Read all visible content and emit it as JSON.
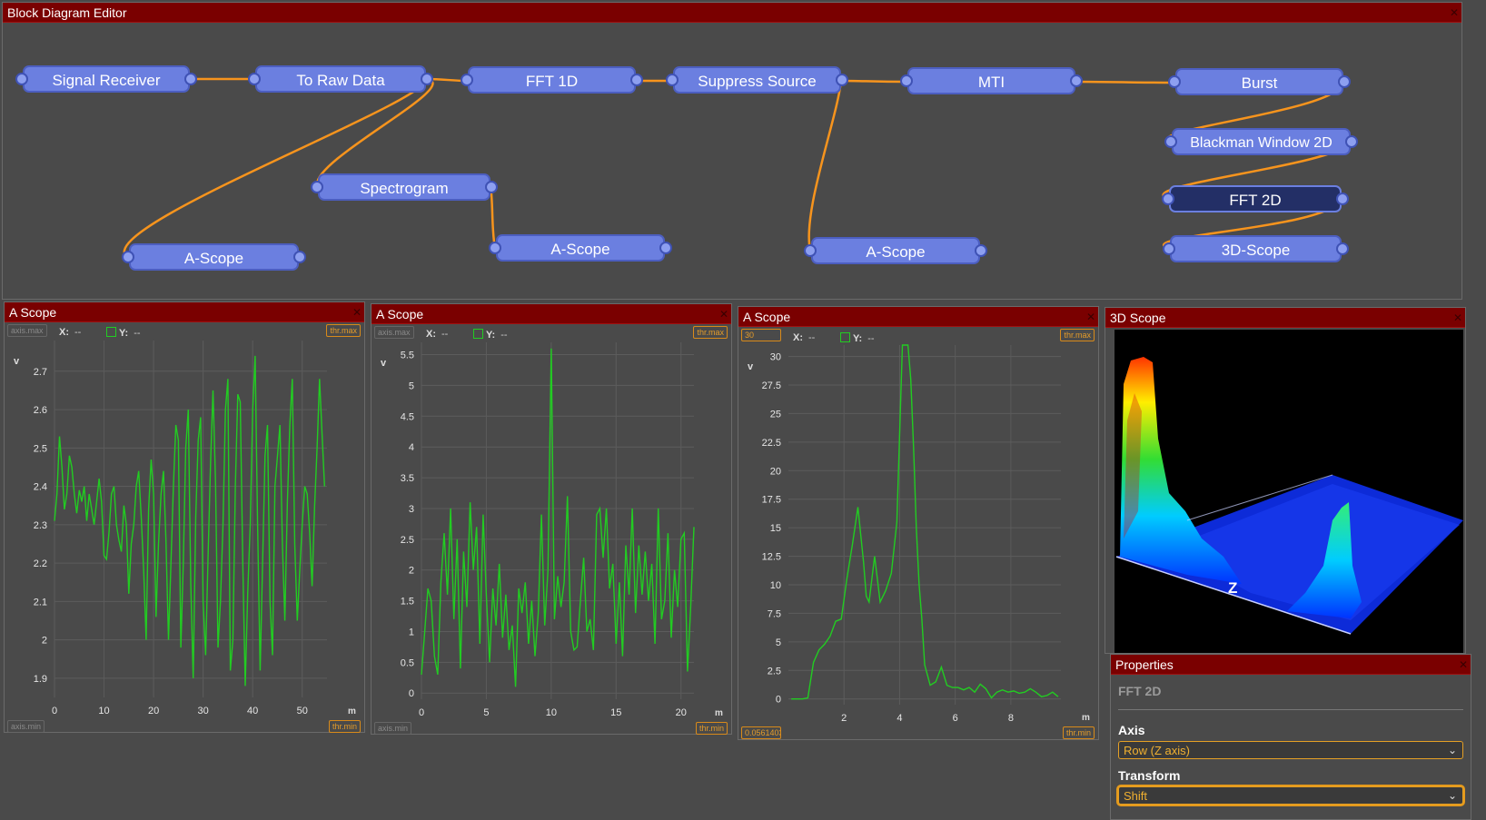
{
  "editor": {
    "title": "Block Diagram Editor",
    "nodes": [
      {
        "id": "signal-receiver",
        "label": "Signal Receiver"
      },
      {
        "id": "to-raw-data",
        "label": "To Raw Data"
      },
      {
        "id": "fft-1d",
        "label": "FFT 1D"
      },
      {
        "id": "suppress-source",
        "label": "Suppress Source"
      },
      {
        "id": "mti",
        "label": "MTI"
      },
      {
        "id": "burst",
        "label": "Burst"
      },
      {
        "id": "spectrogram",
        "label": "Spectrogram"
      },
      {
        "id": "blackman-window-2d",
        "label": "Blackman Window 2D"
      },
      {
        "id": "fft-2d",
        "label": "FFT 2D",
        "selected": true
      },
      {
        "id": "3d-scope",
        "label": "3D-Scope"
      },
      {
        "id": "a-scope-1",
        "label": "A-Scope"
      },
      {
        "id": "a-scope-2",
        "label": "A-Scope"
      },
      {
        "id": "a-scope-3",
        "label": "A-Scope"
      }
    ],
    "wire_color": "#f7941d"
  },
  "scopes": [
    {
      "title": "A Scope",
      "tags": {
        "axis_max": "axis.max",
        "axis_min": "axis.min",
        "thr_max": "thr.max",
        "thr_min": "thr.min"
      },
      "readout": {
        "x_label": "X:",
        "x_value": "--",
        "y_label": "Y:",
        "y_value": "--"
      },
      "ylabel": "v",
      "xlabel": "m"
    },
    {
      "title": "A Scope",
      "tags": {
        "axis_max": "axis.max",
        "axis_min": "axis.min",
        "thr_max": "thr.max",
        "thr_min": "thr.min"
      },
      "readout": {
        "x_label": "X:",
        "x_value": "--",
        "y_label": "Y:",
        "y_value": "--"
      },
      "ylabel": "v",
      "xlabel": "m"
    },
    {
      "title": "A Scope",
      "tags": {
        "axis_max": "30",
        "axis_min": "0.0561403",
        "thr_max": "thr.max",
        "thr_min": "thr.min"
      },
      "readout": {
        "x_label": "X:",
        "x_value": "--",
        "y_label": "Y:",
        "y_value": "--"
      },
      "ylabel": "v",
      "xlabel": "m"
    }
  ],
  "scope3d": {
    "title": "3D Scope",
    "axis_label": "Z"
  },
  "properties": {
    "title": "Properties",
    "node_name": "FFT 2D",
    "axis_label": "Axis",
    "axis_value": "Row (Z axis)",
    "transform_label": "Transform",
    "transform_value": "Shift"
  },
  "chart_data": [
    {
      "type": "line",
      "xlim": [
        0,
        55
      ],
      "ylim": [
        1.85,
        2.78
      ],
      "xticks": [
        0,
        10,
        20,
        30,
        40,
        50
      ],
      "yticks": [
        1.9,
        2,
        2.1,
        2.2,
        2.3,
        2.4,
        2.5,
        2.6,
        2.7
      ],
      "ytick_labels": [
        "1.9",
        "2",
        "2.1",
        "2.2",
        "2.3",
        "2.4",
        "2.5",
        "2.6",
        "2.7"
      ],
      "xlabel": "m",
      "ylabel": "v",
      "grid": true,
      "color": "#22cc22",
      "x": [
        0,
        0.5,
        1,
        1.5,
        2,
        2.5,
        3,
        3.5,
        4,
        4.5,
        5,
        5.5,
        6,
        6.5,
        7,
        7.5,
        8,
        8.5,
        9,
        9.5,
        10,
        10.5,
        11,
        11.5,
        12,
        12.5,
        13,
        13.5,
        14,
        14.5,
        15,
        15.5,
        16,
        16.5,
        17,
        17.5,
        18,
        18.5,
        19,
        19.5,
        20,
        20.5,
        21,
        21.5,
        22,
        22.5,
        23,
        23.5,
        24,
        24.5,
        25,
        25.5,
        26,
        26.5,
        27,
        27.5,
        28,
        28.5,
        29,
        29.5,
        30,
        30.5,
        31,
        31.5,
        32,
        32.5,
        33,
        33.5,
        34,
        34.5,
        35,
        35.5,
        36,
        36.5,
        37,
        37.5,
        38,
        38.5,
        39,
        39.5,
        40,
        40.5,
        41,
        41.5,
        42,
        42.5,
        43,
        43.5,
        44,
        44.5,
        45,
        45.5,
        46,
        46.5,
        47,
        47.5,
        48,
        48.5,
        49,
        49.5,
        50,
        50.5,
        51,
        51.5,
        52,
        52.5,
        53,
        53.5,
        54,
        54.5
      ],
      "y": [
        2.31,
        2.38,
        2.53,
        2.45,
        2.34,
        2.38,
        2.48,
        2.45,
        2.38,
        2.33,
        2.39,
        2.36,
        2.4,
        2.31,
        2.38,
        2.34,
        2.3,
        2.36,
        2.42,
        2.36,
        2.22,
        2.21,
        2.28,
        2.38,
        2.4,
        2.3,
        2.26,
        2.23,
        2.35,
        2.3,
        2.12,
        2.25,
        2.3,
        2.4,
        2.44,
        2.32,
        2.18,
        2.0,
        2.34,
        2.47,
        2.38,
        2.06,
        2.25,
        2.38,
        2.44,
        2.26,
        2.0,
        2.2,
        2.4,
        2.56,
        2.52,
        1.98,
        2.2,
        2.5,
        2.6,
        2.15,
        1.9,
        2.32,
        2.52,
        2.58,
        2.1,
        1.96,
        2.22,
        2.46,
        2.65,
        2.41,
        1.98,
        2.1,
        2.3,
        2.6,
        2.68,
        1.92,
        2.0,
        2.4,
        2.64,
        2.62,
        2.2,
        1.88,
        2.12,
        2.3,
        2.6,
        2.74,
        2.3,
        1.92,
        2.2,
        2.48,
        2.56,
        2.1,
        1.96,
        2.4,
        2.48,
        2.56,
        2.25,
        2.05,
        2.36,
        2.56,
        2.68,
        2.25,
        2.05,
        2.18,
        2.3,
        2.4,
        2.38,
        2.28,
        2.14,
        2.35,
        2.5,
        2.68,
        2.54,
        2.4
      ]
    },
    {
      "type": "line",
      "xlim": [
        0,
        21
      ],
      "ylim": [
        -0.1,
        5.7
      ],
      "xticks": [
        0,
        5,
        10,
        15,
        20
      ],
      "yticks": [
        0,
        0.5,
        1,
        1.5,
        2,
        2.5,
        3,
        3.5,
        4,
        4.5,
        5,
        5.5
      ],
      "ytick_labels": [
        "0",
        "0.5",
        "1",
        "1.5",
        "2",
        "2.5",
        "3",
        "3.5",
        "4",
        "4.5",
        "5",
        "5.5"
      ],
      "xlabel": "m",
      "ylabel": "v",
      "grid": true,
      "color": "#22cc22",
      "x": [
        0,
        0.25,
        0.5,
        0.75,
        1,
        1.25,
        1.5,
        1.75,
        2,
        2.25,
        2.5,
        2.75,
        3,
        3.25,
        3.5,
        3.75,
        4,
        4.25,
        4.5,
        4.75,
        5,
        5.25,
        5.5,
        5.75,
        6,
        6.25,
        6.5,
        6.75,
        7,
        7.25,
        7.5,
        7.75,
        8,
        8.25,
        8.5,
        8.75,
        9,
        9.25,
        9.5,
        9.75,
        10,
        10.25,
        10.5,
        10.75,
        11,
        11.25,
        11.5,
        11.75,
        12,
        12.25,
        12.5,
        12.75,
        13,
        13.25,
        13.5,
        13.75,
        14,
        14.25,
        14.5,
        14.75,
        15,
        15.25,
        15.5,
        15.75,
        16,
        16.25,
        16.5,
        16.75,
        17,
        17.25,
        17.5,
        17.75,
        18,
        18.25,
        18.5,
        18.75,
        19,
        19.25,
        19.5,
        19.75,
        20,
        20.25,
        20.5,
        20.75,
        21
      ],
      "y": [
        0.3,
        1.0,
        1.7,
        1.5,
        0.6,
        0.3,
        1.8,
        2.6,
        1.6,
        3.0,
        1.2,
        2.5,
        0.4,
        2.3,
        1.4,
        3.1,
        2.0,
        2.7,
        0.8,
        2.9,
        1.6,
        0.5,
        1.7,
        1.1,
        2.1,
        0.9,
        1.6,
        0.7,
        1.1,
        0.1,
        1.7,
        1.3,
        1.8,
        0.8,
        1.5,
        0.6,
        1.3,
        2.9,
        1.1,
        2.0,
        5.6,
        1.2,
        1.9,
        1.4,
        1.8,
        3.2,
        1.0,
        0.7,
        0.75,
        1.5,
        2.2,
        1.0,
        1.2,
        0.7,
        2.9,
        3.0,
        2.2,
        3.0,
        1.7,
        2.1,
        0.8,
        1.8,
        0.6,
        2.4,
        1.6,
        3.0,
        1.3,
        2.4,
        1.6,
        2.3,
        1.5,
        2.1,
        0.8,
        3.0,
        1.2,
        1.5,
        2.6,
        0.9,
        2.0,
        1.4,
        2.5,
        2.6,
        0.35,
        1.4,
        2.7
      ]
    },
    {
      "type": "line",
      "xlim": [
        0,
        9.8
      ],
      "ylim": [
        -0.5,
        31
      ],
      "xticks": [
        2,
        4,
        6,
        8
      ],
      "yticks": [
        0,
        2.5,
        5,
        7.5,
        10,
        12.5,
        15,
        17.5,
        20,
        22.5,
        25,
        27.5,
        30
      ],
      "ytick_labels": [
        "0",
        "2.5",
        "5",
        "7.5",
        "10",
        "12.5",
        "15",
        "17.5",
        "20",
        "22.5",
        "25",
        "27.5",
        "30"
      ],
      "xlabel": "m",
      "ylabel": "v",
      "grid": true,
      "color": "#22cc22",
      "x": [
        0.1,
        0.3,
        0.5,
        0.7,
        0.9,
        1.1,
        1.3,
        1.5,
        1.7,
        1.9,
        2.1,
        2.3,
        2.5,
        2.7,
        2.8,
        2.9,
        3.1,
        3.3,
        3.5,
        3.7,
        3.9,
        4.1,
        4.2,
        4.3,
        4.4,
        4.5,
        4.6,
        4.7,
        4.8,
        4.9,
        5.1,
        5.3,
        5.5,
        5.7,
        5.9,
        6.1,
        6.3,
        6.5,
        6.7,
        6.9,
        7.1,
        7.3,
        7.5,
        7.7,
        7.9,
        8.1,
        8.3,
        8.5,
        8.7,
        8.9,
        9.1,
        9.3,
        9.5,
        9.7
      ],
      "y": [
        0,
        0,
        0,
        0.1,
        3.2,
        4.3,
        4.8,
        5.5,
        6.8,
        7.0,
        10.5,
        13.5,
        16.8,
        12.0,
        9.0,
        8.5,
        12.5,
        8.5,
        9.5,
        11.0,
        15.5,
        31.0,
        31.0,
        31.0,
        28.0,
        22.0,
        15.0,
        10.0,
        7.0,
        3.0,
        1.2,
        1.5,
        2.8,
        1.2,
        1.0,
        1.0,
        0.8,
        1.0,
        0.6,
        1.3,
        0.9,
        0.1,
        0.6,
        0.8,
        0.6,
        0.7,
        0.5,
        0.6,
        0.9,
        0.6,
        0.2,
        0.3,
        0.6,
        0.2
      ]
    }
  ]
}
